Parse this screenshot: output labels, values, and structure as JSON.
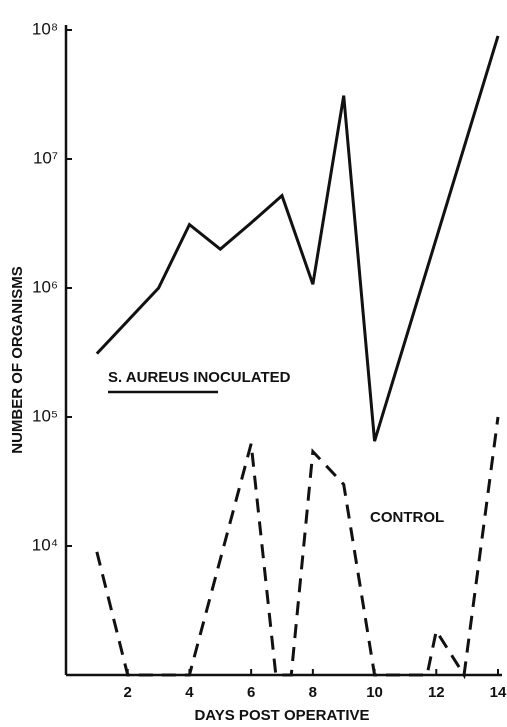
{
  "chart_data": {
    "type": "line",
    "xlabel": "DAYS POST OPERATIVE",
    "ylabel": "NUMBER OF ORGANISMS",
    "xlim": [
      0,
      14
    ],
    "xticks": [
      2,
      4,
      6,
      8,
      10,
      12,
      14
    ],
    "ylim": [
      1000,
      100000000
    ],
    "log_y": true,
    "yticks": [
      {
        "value": 10000,
        "label": "10⁴"
      },
      {
        "value": 100000,
        "label": "10⁵"
      },
      {
        "value": 1000000,
        "label": "10⁶"
      },
      {
        "value": 10000000,
        "label": "10⁷"
      },
      {
        "value": 100000000,
        "label": "10⁸"
      }
    ],
    "series": [
      {
        "name": "S. AUREUS INOCULATED",
        "color": "#111111",
        "dashed": false,
        "x": [
          1,
          3,
          4,
          5,
          6,
          7,
          8,
          9,
          10,
          14
        ],
        "values": [
          310000,
          1000000,
          3100000,
          2000000,
          3200000,
          5200000,
          1070000,
          31000000,
          65000,
          90000000
        ]
      },
      {
        "name": "CONTROL",
        "color": "#111111",
        "dashed": true,
        "x": [
          1,
          2,
          4,
          6,
          6.8,
          7.3,
          8,
          9,
          10,
          11.7,
          12,
          12.9,
          14
        ],
        "values": [
          9000,
          1000,
          1000,
          62000,
          1000,
          1000,
          54000,
          30000,
          1000,
          1000,
          2200,
          1000,
          100000
        ]
      }
    ]
  }
}
